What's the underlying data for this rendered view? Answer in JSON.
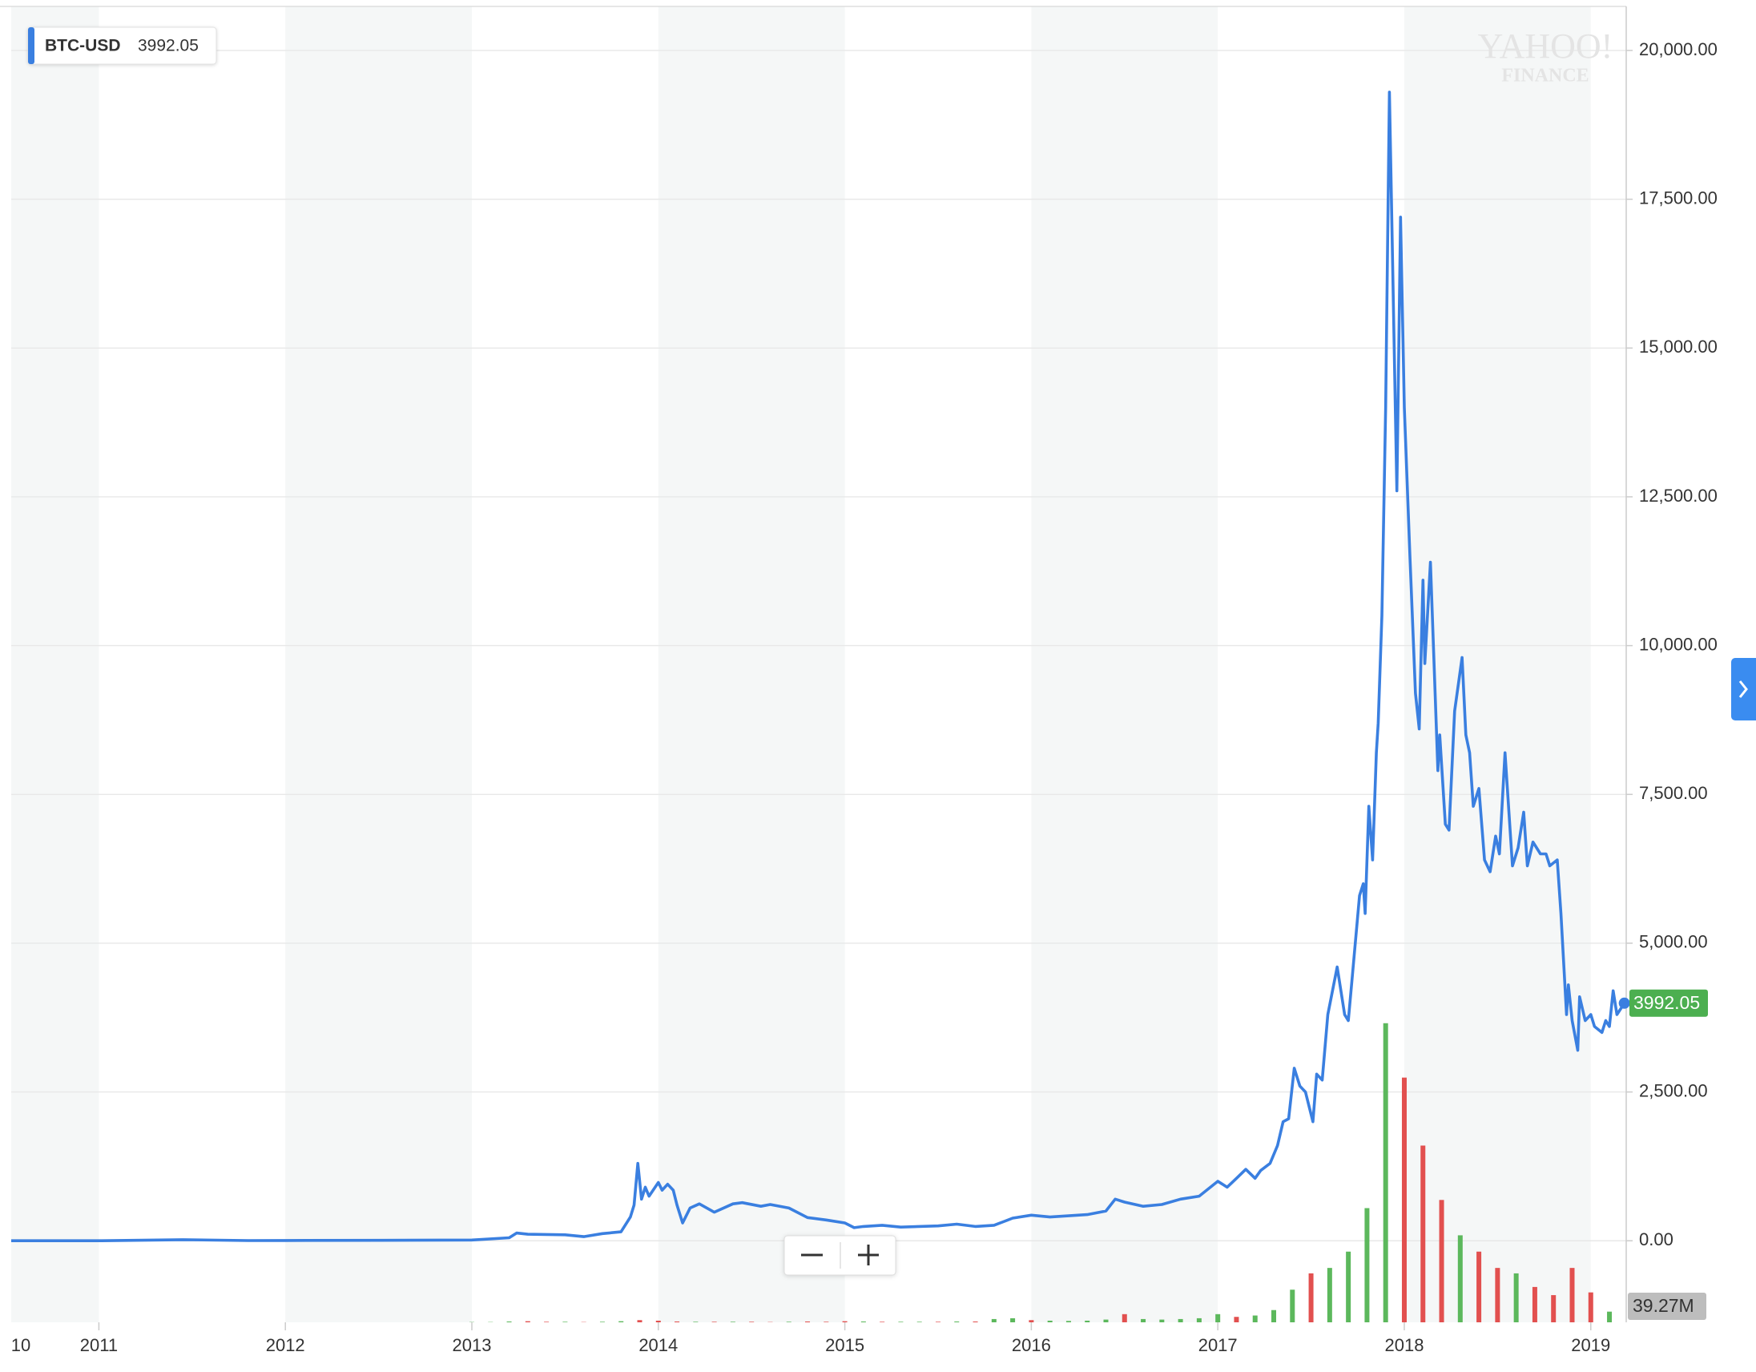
{
  "chart_data": {
    "type": "line",
    "watermark": [
      "YAHOO!",
      "FINANCE"
    ],
    "series": [
      {
        "name": "BTC-USD",
        "color": "#3a7fe0",
        "x": [
          2010.53,
          2011.0,
          2011.45,
          2011.8,
          2012.0,
          2012.5,
          2013.0,
          2013.2,
          2013.24,
          2013.3,
          2013.5,
          2013.6,
          2013.7,
          2013.8,
          2013.85,
          2013.87,
          2013.89,
          2013.91,
          2013.93,
          2013.95,
          2014.0,
          2014.02,
          2014.05,
          2014.08,
          2014.1,
          2014.13,
          2014.17,
          2014.22,
          2014.3,
          2014.4,
          2014.45,
          2014.55,
          2014.6,
          2014.7,
          2014.8,
          2014.9,
          2015.0,
          2015.05,
          2015.1,
          2015.2,
          2015.3,
          2015.5,
          2015.6,
          2015.7,
          2015.8,
          2015.85,
          2015.9,
          2016.0,
          2016.1,
          2016.2,
          2016.3,
          2016.4,
          2016.45,
          2016.5,
          2016.6,
          2016.7,
          2016.8,
          2016.9,
          2017.0,
          2017.05,
          2017.1,
          2017.15,
          2017.2,
          2017.23,
          2017.28,
          2017.32,
          2017.35,
          2017.38,
          2017.41,
          2017.44,
          2017.47,
          2017.51,
          2017.53,
          2017.56,
          2017.59,
          2017.64,
          2017.68,
          2017.7,
          2017.72,
          2017.76,
          2017.78,
          2017.79,
          2017.81,
          2017.83,
          2017.85,
          2017.86,
          2017.88,
          2017.9,
          2017.92,
          2017.96,
          2017.98,
          2018.0,
          2018.03,
          2018.06,
          2018.08,
          2018.1,
          2018.11,
          2018.14,
          2018.18,
          2018.19,
          2018.22,
          2018.24,
          2018.27,
          2018.31,
          2018.33,
          2018.35,
          2018.37,
          2018.4,
          2018.43,
          2018.46,
          2018.49,
          2018.51,
          2018.54,
          2018.58,
          2018.61,
          2018.64,
          2018.66,
          2018.69,
          2018.73,
          2018.76,
          2018.78,
          2018.82,
          2018.84,
          2018.87,
          2018.88,
          2018.9,
          2018.93,
          2018.94,
          2018.97,
          2019.0,
          2019.02,
          2019.06,
          2019.08,
          2019.1,
          2019.12,
          2019.14,
          2019.18
        ],
        "values": [
          0.1,
          0.3,
          18,
          3,
          5,
          7,
          13,
          50,
          130,
          110,
          100,
          70,
          120,
          150,
          400,
          600,
          1300,
          700,
          900,
          750,
          980,
          850,
          950,
          850,
          600,
          300,
          550,
          620,
          480,
          620,
          640,
          580,
          610,
          550,
          390,
          350,
          300,
          220,
          240,
          260,
          230,
          250,
          280,
          240,
          260,
          320,
          380,
          430,
          400,
          420,
          440,
          500,
          700,
          650,
          580,
          610,
          700,
          750,
          1000,
          900,
          1050,
          1200,
          1050,
          1180,
          1300,
          1600,
          2000,
          2050,
          2900,
          2600,
          2500,
          2000,
          2800,
          2700,
          3800,
          4600,
          3800,
          3700,
          4400,
          5800,
          6000,
          5500,
          7300,
          6400,
          8200,
          8700,
          10500,
          14000,
          19300,
          12600,
          17200,
          14000,
          11500,
          9200,
          8600,
          11100,
          9700,
          11400,
          7900,
          8500,
          7000,
          6900,
          8900,
          9800,
          8500,
          8200,
          7300,
          7600,
          6400,
          6200,
          6800,
          6500,
          8200,
          6300,
          6600,
          7200,
          6300,
          6700,
          6500,
          6500,
          6300,
          6400,
          5500,
          3800,
          4300,
          3700,
          3200,
          4100,
          3700,
          3800,
          3600,
          3500,
          3700,
          3600,
          4200,
          3800,
          3992.05
        ]
      }
    ],
    "volume": {
      "x": [
        2013.0,
        2013.1,
        2013.2,
        2013.3,
        2013.4,
        2013.5,
        2013.6,
        2013.7,
        2013.8,
        2013.9,
        2014.0,
        2014.1,
        2014.2,
        2014.3,
        2014.4,
        2014.5,
        2014.6,
        2014.7,
        2014.8,
        2014.9,
        2015.0,
        2015.1,
        2015.2,
        2015.3,
        2015.4,
        2015.5,
        2015.6,
        2015.7,
        2015.8,
        2015.9,
        2016.0,
        2016.1,
        2016.2,
        2016.3,
        2016.4,
        2016.5,
        2016.6,
        2016.7,
        2016.8,
        2016.9,
        2017.0,
        2017.1,
        2017.2,
        2017.3,
        2017.4,
        2017.5,
        2017.6,
        2017.7,
        2017.8,
        2017.9,
        2018.0,
        2018.1,
        2018.2,
        2018.3,
        2018.4,
        2018.5,
        2018.6,
        2018.7,
        2018.8,
        2018.9,
        2019.0,
        2019.1
      ],
      "values": [
        1,
        1,
        3,
        4,
        2,
        2,
        1,
        2,
        4,
        8,
        6,
        3,
        2,
        2,
        2,
        2,
        1,
        2,
        3,
        2,
        4,
        3,
        2,
        2,
        2,
        2,
        3,
        3,
        12,
        15,
        8,
        6,
        5,
        6,
        10,
        30,
        12,
        10,
        12,
        15,
        30,
        20,
        25,
        45,
        120,
        180,
        200,
        260,
        420,
        1100,
        900,
        650,
        450,
        320,
        260,
        200,
        180,
        130,
        100,
        200,
        110,
        39.27
      ],
      "colors": [
        "#5cb85c",
        "#5cb85c",
        "#5cb85c",
        "#e2504f",
        "#e2504f",
        "#5cb85c",
        "#e2504f",
        "#5cb85c",
        "#5cb85c",
        "#e2504f",
        "#e2504f",
        "#e2504f",
        "#5cb85c",
        "#e2504f",
        "#5cb85c",
        "#e2504f",
        "#e2504f",
        "#5cb85c",
        "#e2504f",
        "#e2504f",
        "#e2504f",
        "#5cb85c",
        "#e2504f",
        "#5cb85c",
        "#5cb85c",
        "#e2504f",
        "#5cb85c",
        "#e2504f",
        "#5cb85c",
        "#5cb85c",
        "#e2504f",
        "#5cb85c",
        "#5cb85c",
        "#5cb85c",
        "#5cb85c",
        "#e2504f",
        "#5cb85c",
        "#5cb85c",
        "#5cb85c",
        "#5cb85c",
        "#5cb85c",
        "#e2504f",
        "#5cb85c",
        "#5cb85c",
        "#5cb85c",
        "#e2504f",
        "#5cb85c",
        "#5cb85c",
        "#5cb85c",
        "#5cb85c",
        "#e2504f",
        "#e2504f",
        "#e2504f",
        "#5cb85c",
        "#e2504f",
        "#e2504f",
        "#5cb85c",
        "#e2504f",
        "#e2504f",
        "#e2504f",
        "#e2504f",
        "#5cb85c"
      ],
      "value_labels": {
        "61": "39.27M"
      }
    },
    "xlim": [
      2010.53,
      2019.19
    ],
    "xticks": [
      {
        "value": 2010,
        "label": "10"
      },
      2011,
      2012,
      2013,
      2014,
      2015,
      2016,
      2017,
      2018,
      2019
    ],
    "ylim": [
      -1370,
      20740
    ],
    "yticks": [
      {
        "value": 0,
        "label": "0.00"
      },
      {
        "value": 2500,
        "label": "2,500.00"
      },
      {
        "value": 5000,
        "label": "5,000.00"
      },
      {
        "value": 7500,
        "label": "7,500.00"
      },
      {
        "value": 10000,
        "label": "10,000.00"
      },
      {
        "value": 12500,
        "label": "12,500.00"
      },
      {
        "value": 15000,
        "label": "15,000.00"
      },
      {
        "value": 17500,
        "label": "17,500.00"
      },
      {
        "value": 20000,
        "label": "20,000.00"
      }
    ],
    "y2lim": [
      0,
      1400
    ],
    "grid": true
  }
}
